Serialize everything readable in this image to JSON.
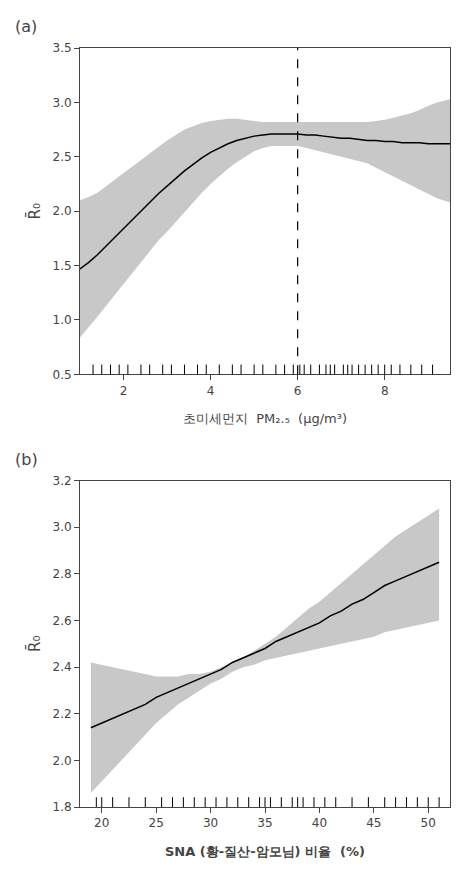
{
  "chart_data": [
    {
      "type": "line",
      "title": "(a)",
      "x_label": "초미세먼지  PM₂.₅  (μg/m³)",
      "y_label": "R̄₀",
      "x": [
        1.0,
        1.2,
        1.4,
        1.6,
        1.8,
        2.0,
        2.2,
        2.4,
        2.6,
        2.8,
        3.0,
        3.2,
        3.4,
        3.6,
        3.8,
        4.0,
        4.2,
        4.4,
        4.6,
        4.8,
        5.0,
        5.2,
        5.4,
        5.6,
        5.8,
        6.0,
        6.2,
        6.4,
        6.6,
        6.8,
        7.0,
        7.2,
        7.4,
        7.6,
        7.8,
        8.0,
        8.2,
        8.4,
        8.6,
        8.8,
        9.0,
        9.2,
        9.5
      ],
      "series": [
        {
          "color": "#000000",
          "values": [
            1.47,
            1.53,
            1.6,
            1.68,
            1.76,
            1.84,
            1.92,
            2.0,
            2.08,
            2.16,
            2.23,
            2.3,
            2.37,
            2.43,
            2.49,
            2.54,
            2.58,
            2.62,
            2.65,
            2.67,
            2.69,
            2.7,
            2.71,
            2.71,
            2.71,
            2.71,
            2.7,
            2.7,
            2.69,
            2.68,
            2.67,
            2.67,
            2.66,
            2.65,
            2.65,
            2.64,
            2.64,
            2.63,
            2.63,
            2.63,
            2.62,
            2.62,
            2.62
          ]
        }
      ],
      "band": {
        "color": "#c8c8c8",
        "upper": [
          2.1,
          2.13,
          2.17,
          2.23,
          2.29,
          2.35,
          2.41,
          2.47,
          2.53,
          2.59,
          2.65,
          2.7,
          2.75,
          2.78,
          2.81,
          2.83,
          2.84,
          2.85,
          2.85,
          2.84,
          2.83,
          2.82,
          2.82,
          2.82,
          2.82,
          2.82,
          2.82,
          2.82,
          2.82,
          2.82,
          2.82,
          2.82,
          2.82,
          2.82,
          2.83,
          2.84,
          2.86,
          2.88,
          2.9,
          2.93,
          2.97,
          3.0,
          3.03
        ],
        "lower": [
          0.84,
          0.93,
          1.03,
          1.13,
          1.23,
          1.33,
          1.43,
          1.53,
          1.63,
          1.73,
          1.81,
          1.9,
          1.99,
          2.08,
          2.17,
          2.25,
          2.32,
          2.39,
          2.45,
          2.5,
          2.55,
          2.58,
          2.6,
          2.6,
          2.6,
          2.6,
          2.58,
          2.56,
          2.54,
          2.52,
          2.5,
          2.48,
          2.46,
          2.44,
          2.4,
          2.36,
          2.32,
          2.28,
          2.24,
          2.2,
          2.16,
          2.12,
          2.08
        ]
      },
      "vline": {
        "x": 6.0,
        "color": "#000000",
        "line_style": "dashed"
      },
      "rug": [
        1.3,
        1.5,
        1.7,
        1.9,
        2.1,
        2.4,
        2.6,
        2.9,
        3.1,
        3.4,
        3.7,
        3.9,
        4.2,
        4.5,
        4.7,
        5.0,
        5.2,
        5.5,
        5.7,
        5.9,
        6.05,
        6.15,
        6.3,
        6.5,
        6.65,
        6.75,
        6.85,
        7.05,
        7.15,
        7.25,
        7.4,
        7.55,
        7.7,
        7.85,
        8.0,
        8.15,
        8.35,
        8.6,
        8.85,
        9.1
      ],
      "xlim": [
        1.0,
        9.5
      ],
      "xticks": [
        2,
        4,
        6,
        8
      ],
      "ylim": [
        0.5,
        3.5
      ],
      "yticks": [
        0.5,
        {
          "value": 1.0,
          "label": "1.0"
        },
        1.5,
        {
          "value": 2.0,
          "label": "2.0"
        },
        2.5,
        {
          "value": 3.0,
          "label": "3.0"
        },
        3.5
      ],
      "grid": false
    },
    {
      "type": "line",
      "title": "(b)",
      "x_label": "SNA (황-질산-암모님) 비율  (%)",
      "y_label": "R̄₀",
      "x": [
        19,
        20,
        21,
        22,
        23,
        24,
        25,
        26,
        27,
        28,
        29,
        30,
        31,
        32,
        33,
        34,
        35,
        36,
        37,
        38,
        39,
        40,
        41,
        42,
        43,
        44,
        45,
        46,
        47,
        48,
        49,
        50,
        51
      ],
      "series": [
        {
          "color": "#000000",
          "values": [
            2.14,
            2.16,
            2.18,
            2.2,
            2.22,
            2.24,
            2.27,
            2.29,
            2.31,
            2.33,
            2.35,
            2.37,
            2.39,
            2.42,
            2.44,
            2.46,
            2.48,
            2.51,
            2.53,
            2.55,
            2.57,
            2.59,
            2.62,
            2.64,
            2.67,
            2.69,
            2.72,
            2.75,
            2.77,
            2.79,
            2.81,
            2.83,
            2.85
          ]
        }
      ],
      "band": {
        "color": "#c8c8c8",
        "upper": [
          2.42,
          2.41,
          2.4,
          2.39,
          2.38,
          2.37,
          2.36,
          2.36,
          2.36,
          2.37,
          2.37,
          2.38,
          2.4,
          2.42,
          2.44,
          2.47,
          2.5,
          2.53,
          2.57,
          2.61,
          2.65,
          2.68,
          2.72,
          2.76,
          2.8,
          2.84,
          2.88,
          2.92,
          2.96,
          2.99,
          3.02,
          3.05,
          3.08
        ],
        "lower": [
          1.86,
          1.91,
          1.96,
          2.01,
          2.06,
          2.11,
          2.16,
          2.2,
          2.24,
          2.27,
          2.3,
          2.33,
          2.35,
          2.38,
          2.4,
          2.41,
          2.43,
          2.44,
          2.45,
          2.46,
          2.47,
          2.48,
          2.49,
          2.5,
          2.51,
          2.52,
          2.53,
          2.55,
          2.56,
          2.57,
          2.58,
          2.59,
          2.6
        ]
      },
      "rug": [
        19.5,
        20.0,
        21.0,
        22.5,
        24.0,
        25.5,
        26.5,
        27.5,
        28.5,
        29.5,
        30.5,
        31.5,
        32.5,
        33.5,
        34.5,
        35.0,
        35.5,
        36.5,
        37.5,
        38.0,
        38.5,
        39.5,
        40.5,
        41.5,
        43.0,
        44.5,
        46.0,
        47.0,
        48.0,
        49.0,
        50.0,
        51.0
      ],
      "xlim": [
        18.0,
        52.0
      ],
      "xticks": [
        20,
        25,
        30,
        35,
        40,
        45,
        50
      ],
      "ylim": [
        1.8,
        3.2
      ],
      "yticks": [
        1.8,
        {
          "value": 2.0,
          "label": "2.0"
        },
        2.2,
        2.4,
        2.6,
        2.8,
        {
          "value": 3.0,
          "label": "3.0"
        },
        3.2
      ],
      "grid": false
    }
  ]
}
